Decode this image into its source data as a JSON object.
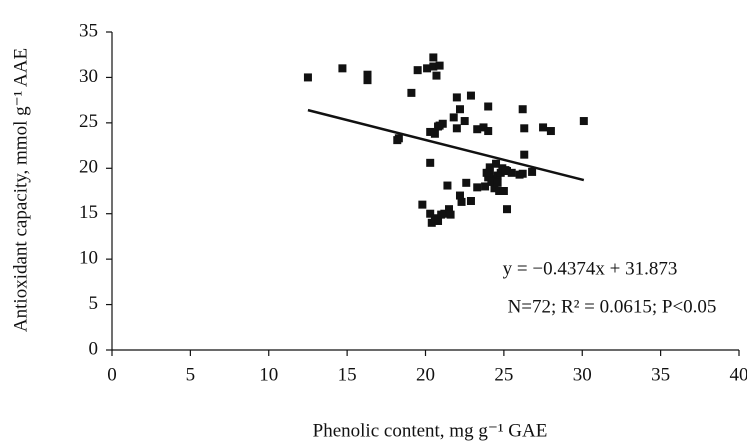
{
  "chart_data": {
    "type": "scatter",
    "x_label": "Phenolic content, mg g⁻¹ GAE",
    "y_label": "Antioxidant capacity, mmol g⁻¹ AAE",
    "annotations": [
      "y = −0.4374x + 31.873",
      "N=72; R² = 0.0615; P<0.05"
    ],
    "xlim": [
      0,
      40
    ],
    "xticks": [
      0,
      5,
      10,
      15,
      20,
      25,
      30,
      35,
      40
    ],
    "ylim": [
      0,
      35
    ],
    "yticks": [
      0,
      5,
      10,
      15,
      20,
      25,
      30,
      35
    ],
    "color": "#111111",
    "x": [
      12.5,
      14.7,
      16.3,
      16.3,
      18.2,
      18.3,
      19.1,
      19.5,
      19.8,
      20.1,
      20.3,
      20.5,
      20.5,
      20.7,
      20.9,
      20.3,
      20.6,
      20.8,
      21.1,
      20.3,
      20.4,
      20.6,
      20.8,
      21.2,
      21.4,
      21.5,
      21.6,
      21.8,
      22.0,
      22.0,
      22.2,
      22.3,
      22.2,
      22.5,
      22.6,
      22.9,
      22.9,
      23.3,
      23.3,
      23.7,
      23.8,
      24.0,
      24.0,
      24.1,
      24.1,
      24.2,
      24.0,
      24.4,
      24.5,
      24.6,
      24.7,
      24.8,
      24.9,
      25.0,
      25.2,
      25.2,
      25.5,
      26.2,
      26.3,
      26.3,
      26.2,
      26.8,
      27.5,
      28.0,
      30.1,
      24.3,
      23.9,
      20.9,
      24.6,
      25.1,
      26.0,
      21.0
    ],
    "y": [
      30.0,
      31.0,
      30.3,
      29.7,
      23.1,
      23.3,
      28.3,
      30.8,
      16.0,
      31.0,
      20.6,
      32.2,
      31.2,
      30.2,
      31.3,
      24.0,
      23.8,
      24.6,
      24.9,
      15.0,
      14.0,
      14.5,
      14.2,
      15.0,
      18.1,
      15.5,
      14.9,
      25.6,
      27.8,
      24.4,
      26.5,
      16.3,
      17.0,
      25.2,
      18.4,
      28.0,
      16.4,
      24.3,
      17.9,
      24.5,
      18.0,
      26.8,
      24.1,
      20.1,
      19.6,
      18.8,
      19.0,
      17.8,
      20.5,
      19.2,
      17.5,
      19.5,
      20.0,
      17.5,
      15.5,
      19.7,
      19.5,
      26.5,
      24.4,
      21.5,
      19.4,
      19.6,
      24.5,
      24.1,
      25.2,
      18.5,
      19.5,
      24.7,
      18.4,
      19.8,
      19.3,
      14.9
    ],
    "trendline": {
      "x": [
        12.5,
        30.1
      ],
      "y": [
        26.4,
        18.7
      ]
    }
  }
}
